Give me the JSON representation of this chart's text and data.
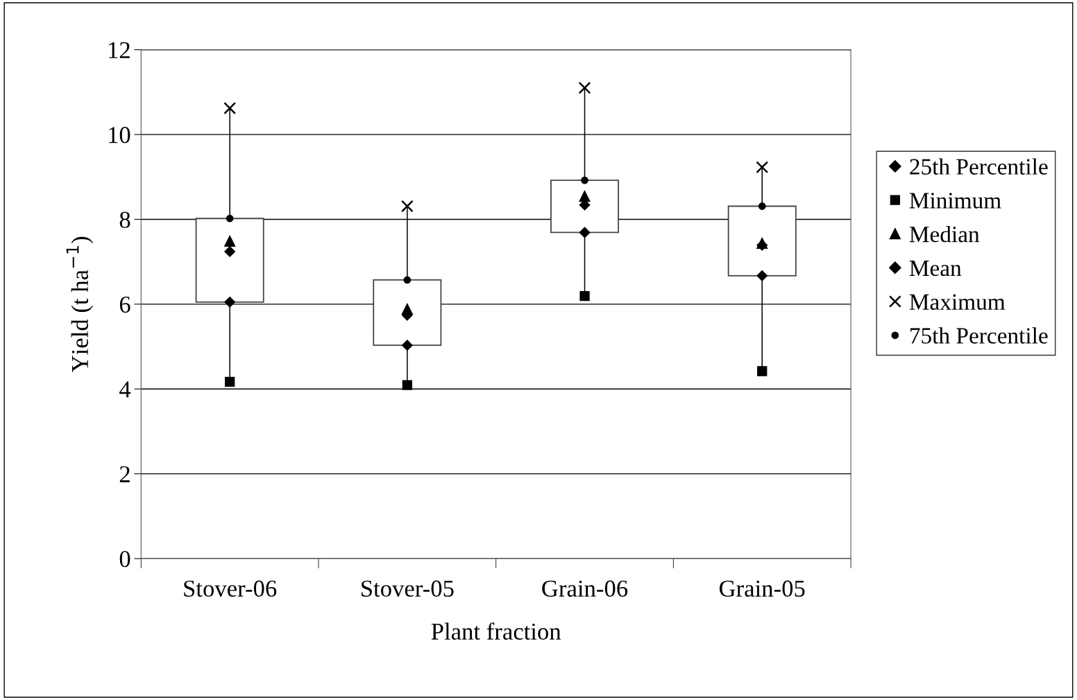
{
  "chart_data": {
    "type": "box",
    "xlabel": "Plant fraction",
    "ylabel": "Yield (t ha$^{−1}$)",
    "categories": [
      "Stover-06",
      "Stover-05",
      "Grain-06",
      "Grain-05"
    ],
    "ylim": [
      0,
      12
    ],
    "yticks": [
      0,
      2,
      4,
      6,
      8,
      10,
      12
    ],
    "grid": "y",
    "legend": "right",
    "boxes": [
      {
        "low": 4.17,
        "q1": 6.05,
        "q3": 8.02,
        "high": 10.62
      },
      {
        "low": 4.09,
        "q1": 5.03,
        "q3": 6.57,
        "high": 8.31
      },
      {
        "low": 6.19,
        "q1": 7.69,
        "q3": 8.92,
        "high": 11.1
      },
      {
        "low": 4.42,
        "q1": 6.67,
        "q3": 8.31,
        "high": 9.23
      }
    ],
    "series": [
      {
        "name": "25th Percentile",
        "type": "scatter",
        "marker": "diamond",
        "color": "#000000",
        "values": [
          6.05,
          5.03,
          7.69,
          6.67
        ]
      },
      {
        "name": "Minimum",
        "type": "scatter",
        "marker": "square",
        "color": "#000000",
        "values": [
          4.17,
          4.09,
          6.19,
          4.42
        ]
      },
      {
        "name": "Median",
        "type": "scatter",
        "marker": "triangle",
        "color": "#000000",
        "values": [
          7.48,
          5.88,
          8.54,
          7.43
        ]
      },
      {
        "name": "Mean",
        "type": "scatter",
        "marker": "diamond",
        "color": "#000000",
        "values": [
          7.24,
          5.74,
          8.34,
          7.39
        ]
      },
      {
        "name": "Maximum",
        "type": "scatter",
        "marker": "cross",
        "color": "#000000",
        "values": [
          10.62,
          8.31,
          11.1,
          9.23
        ]
      },
      {
        "name": "75th Percentile",
        "type": "scatter",
        "marker": "circle",
        "color": "#000000",
        "values": [
          8.02,
          6.57,
          8.92,
          8.31
        ]
      }
    ]
  }
}
